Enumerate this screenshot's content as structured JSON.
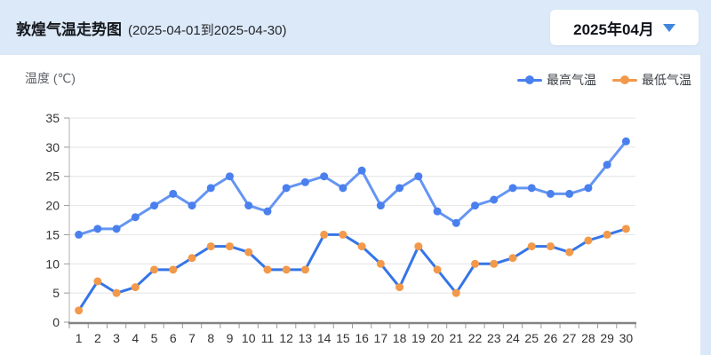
{
  "header": {
    "title": "敦煌气温走势图",
    "date_range": "(2025-04-01到2025-04-30)",
    "month_selector": {
      "value": "2025年04月"
    }
  },
  "chart": {
    "y_axis_title": "温度 (℃)"
  },
  "colors": {
    "page_bg": "#dbe8f7",
    "card_bg": "#ffffff",
    "grid": "#e4e4e4",
    "y_axis_line": "#b0b0b0",
    "x_axis_line": "#848484",
    "tick": "#9a9a9a",
    "tick_label": "#333333",
    "caret": "#3f86dd"
  },
  "chart_data": {
    "type": "line",
    "title": "敦煌气温走势图 (2025-04-01到2025-04-30)",
    "x": [
      1,
      2,
      3,
      4,
      5,
      6,
      7,
      8,
      9,
      10,
      11,
      12,
      13,
      14,
      15,
      16,
      17,
      18,
      19,
      20,
      21,
      22,
      23,
      24,
      25,
      26,
      27,
      28,
      29,
      30
    ],
    "series": [
      {
        "name": "最高气温",
        "line_color": "#6495f2",
        "dot_color": "#4a80ee",
        "values": [
          15,
          16,
          16,
          18,
          20,
          22,
          20,
          23,
          25,
          20,
          19,
          23,
          24,
          25,
          23,
          26,
          20,
          23,
          25,
          19,
          17,
          20,
          21,
          23,
          23,
          22,
          22,
          23,
          27,
          31
        ]
      },
      {
        "name": "最低气温",
        "line_color": "#3575e8",
        "dot_color": "#f2994a",
        "values": [
          2,
          7,
          5,
          6,
          9,
          9,
          11,
          13,
          13,
          12,
          9,
          9,
          9,
          15,
          15,
          13,
          10,
          6,
          13,
          9,
          5,
          10,
          10,
          11,
          13,
          13,
          12,
          14,
          15,
          16
        ]
      }
    ],
    "ylabel": "温度 (℃)",
    "ylim": [
      0,
      35
    ],
    "y_ticks": [
      0,
      5,
      10,
      15,
      20,
      25,
      30,
      35
    ],
    "grid": true,
    "legend_position": "top-right"
  }
}
